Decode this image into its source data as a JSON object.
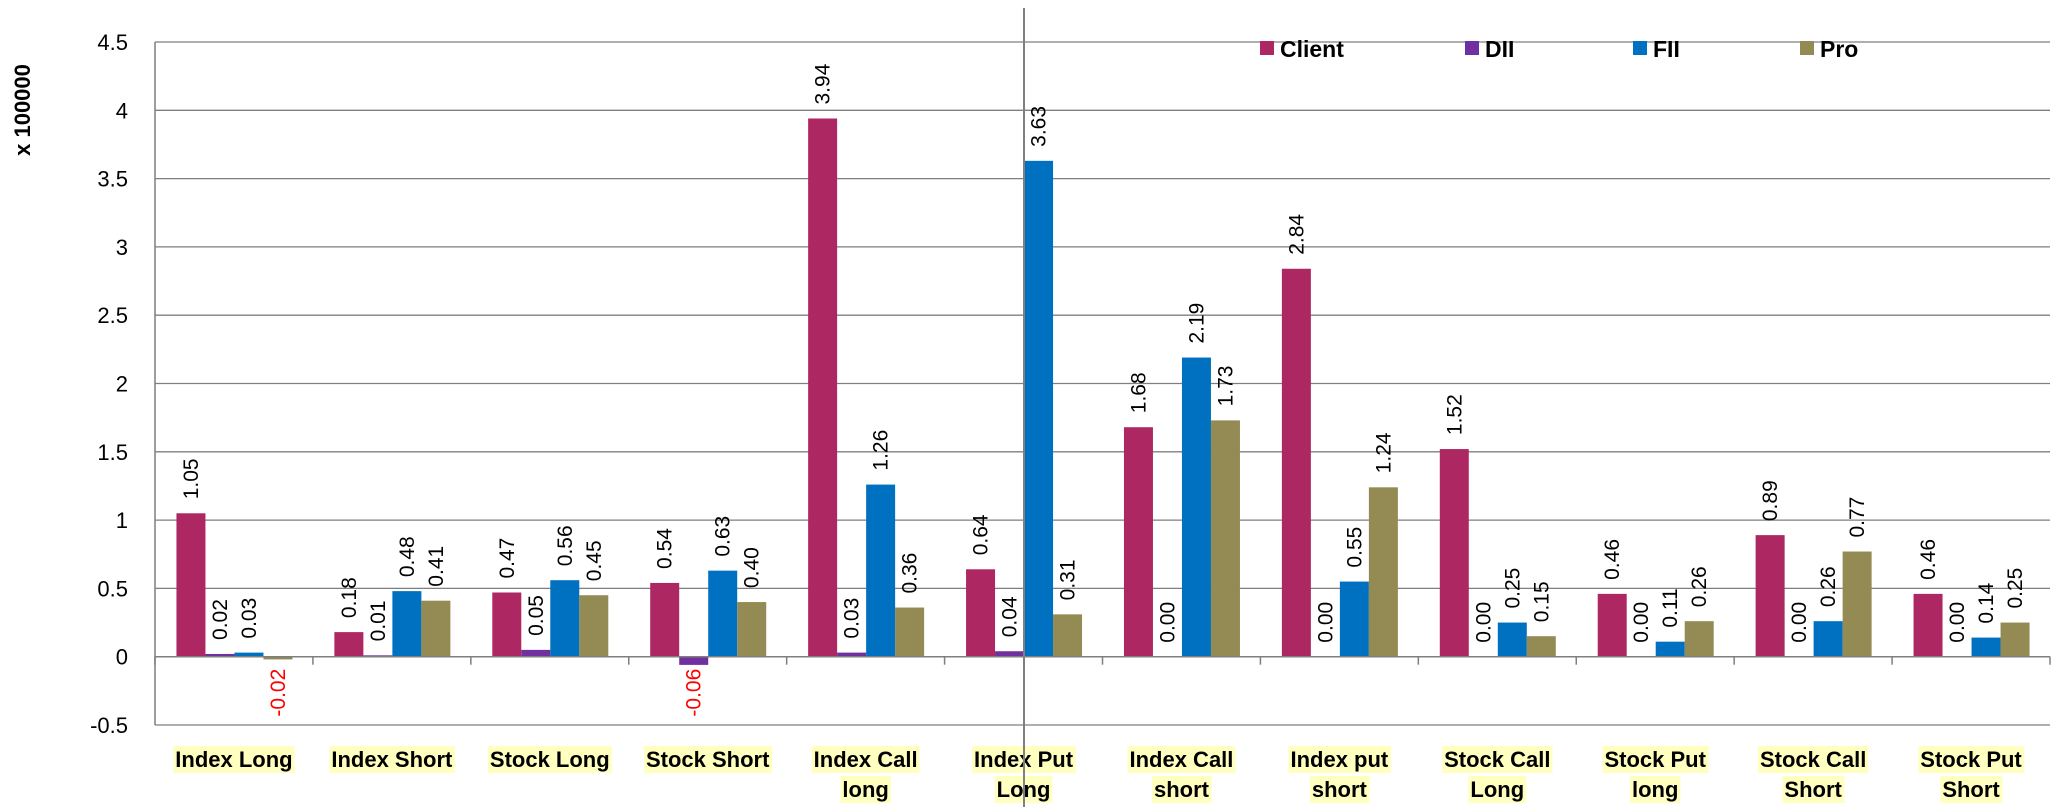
{
  "chart_data": {
    "type": "bar",
    "ylabel": "x 100000",
    "ylim": [
      -0.5,
      4.5
    ],
    "ytick_step": 0.5,
    "yticks": [
      "-0.5",
      "0",
      "0.5",
      "1",
      "1.5",
      "2",
      "2.5",
      "3",
      "3.5",
      "4",
      "4.5"
    ],
    "grid": true,
    "legend_position": "top-right",
    "categories": [
      [
        "Index Long"
      ],
      [
        "Index Short"
      ],
      [
        "Stock Long"
      ],
      [
        "Stock Short"
      ],
      [
        "Index Call",
        "long"
      ],
      [
        "Index Put",
        "Long"
      ],
      [
        "Index Call",
        "short"
      ],
      [
        "Index put",
        "short"
      ],
      [
        "Stock Call",
        "Long"
      ],
      [
        "Stock Put",
        "long"
      ],
      [
        "Stock Call",
        "Short"
      ],
      [
        "Stock Put",
        "Short"
      ]
    ],
    "series": [
      {
        "name": "Client",
        "color": "#ad2862",
        "values": [
          1.05,
          0.18,
          0.47,
          0.54,
          3.94,
          0.64,
          1.68,
          2.84,
          1.52,
          0.46,
          0.89,
          0.46
        ],
        "labels": [
          "1.05",
          "0.18",
          "0.47",
          "0.54",
          "3.94",
          "0.64",
          "1.68",
          "2.84",
          "1.52",
          "0.46",
          "0.89",
          "0.46"
        ]
      },
      {
        "name": "DII",
        "color": "#7030a0",
        "values": [
          0.02,
          0.01,
          0.05,
          -0.06,
          0.03,
          0.04,
          0.0,
          0.0,
          0.0,
          0.0,
          0.0,
          0.0
        ],
        "labels": [
          "0.02",
          "0.01",
          "0.05",
          "-0.06",
          "0.03",
          "0.04",
          "0.00",
          "0.00",
          "0.00",
          "0.00",
          "0.00",
          "0.00"
        ]
      },
      {
        "name": "FII",
        "color": "#0070c0",
        "values": [
          0.03,
          0.48,
          0.56,
          0.63,
          1.26,
          3.63,
          2.19,
          0.55,
          0.25,
          0.11,
          0.26,
          0.14
        ],
        "labels": [
          "0.03",
          "0.48",
          "0.56",
          "0.63",
          "1.26",
          "3.63",
          "2.19",
          "0.55",
          "0.25",
          "0.11",
          "0.26",
          "0.14"
        ]
      },
      {
        "name": "Pro",
        "color": "#948a54",
        "values": [
          -0.02,
          0.41,
          0.45,
          0.4,
          0.36,
          0.31,
          1.73,
          1.24,
          0.15,
          0.26,
          0.77,
          0.25
        ],
        "labels": [
          "-0.02",
          "0.41",
          "0.45",
          "0.40",
          "0.36",
          "0.31",
          "1.73",
          "1.24",
          "0.15",
          "0.26",
          "0.77",
          "0.25"
        ]
      }
    ],
    "colors": {
      "negative_label": "#ff0000",
      "category_label_bg": "#ffffc0",
      "grid": "#7f7f7f",
      "cursor_line": "#808080"
    }
  }
}
